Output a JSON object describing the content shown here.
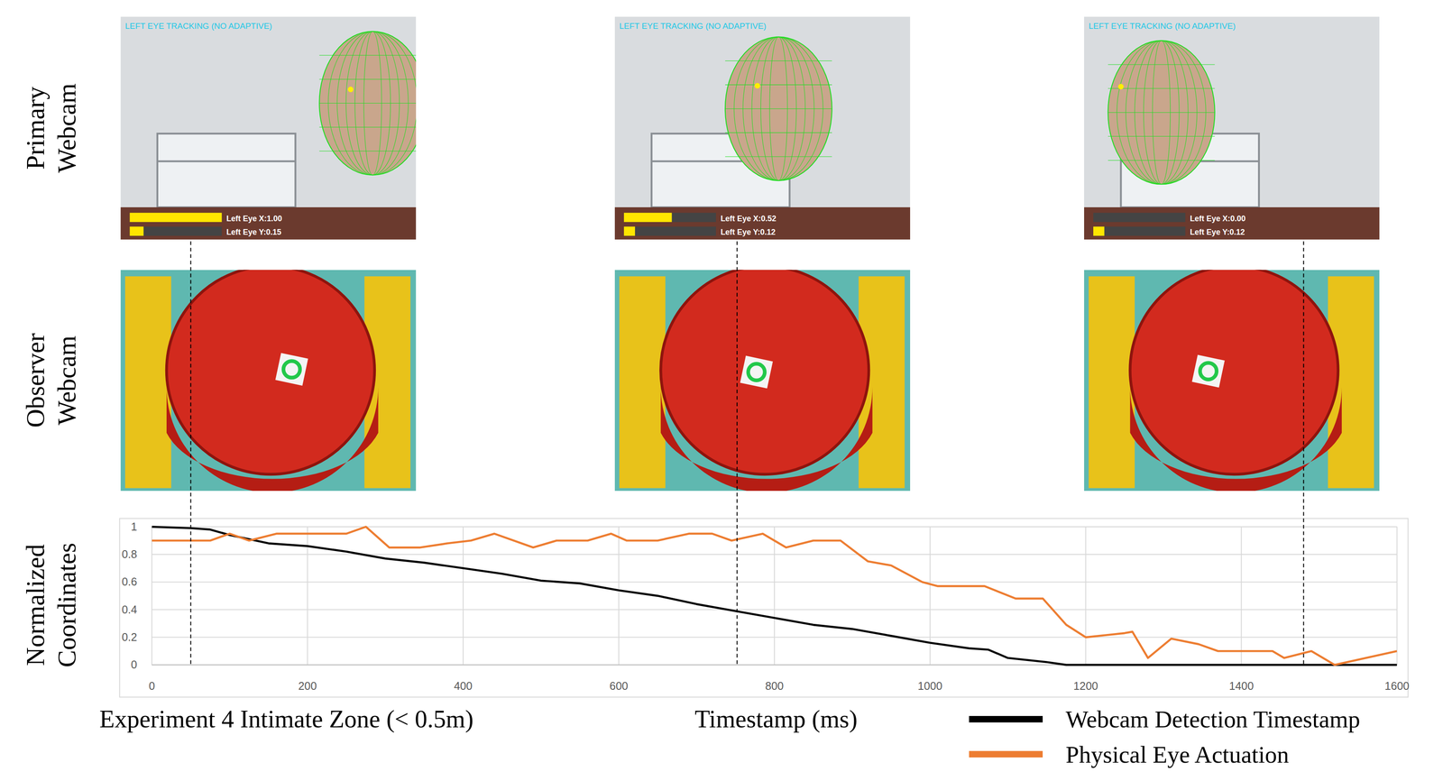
{
  "chart_data": {
    "type": "line",
    "title": "Experiment 4 Intimate Zone (< 0.5m)",
    "xlabel": "Timestamp (ms)",
    "ylabel": "Normalized Coordinates",
    "xlim": [
      0,
      1600
    ],
    "xticks": [
      0,
      200,
      400,
      600,
      800,
      1000,
      1200,
      1400,
      1600
    ],
    "ylim": [
      0,
      1
    ],
    "yticks": [
      0,
      0.2,
      0.4,
      0.6,
      0.8,
      1
    ],
    "grid": true,
    "legend": "bottom-right",
    "frame_times": [
      50,
      752,
      1480
    ],
    "series": [
      {
        "name": "Webcam Detection Timestamp",
        "color": "#000000",
        "x": [
          0,
          50,
          75,
          100,
          150,
          200,
          250,
          300,
          350,
          400,
          450,
          500,
          550,
          600,
          650,
          700,
          750,
          800,
          850,
          900,
          950,
          1000,
          1050,
          1075,
          1100,
          1150,
          1175,
          1600
        ],
        "values": [
          1.0,
          0.99,
          0.98,
          0.94,
          0.88,
          0.86,
          0.82,
          0.77,
          0.74,
          0.7,
          0.66,
          0.61,
          0.59,
          0.54,
          0.5,
          0.44,
          0.39,
          0.34,
          0.29,
          0.26,
          0.21,
          0.16,
          0.12,
          0.11,
          0.05,
          0.02,
          0.0,
          0.0
        ]
      },
      {
        "name": "Physical Eye Actuation",
        "color": "#ed7d31",
        "x": [
          0,
          50,
          75,
          100,
          125,
          160,
          200,
          250,
          275,
          305,
          345,
          380,
          410,
          440,
          490,
          520,
          560,
          590,
          610,
          650,
          690,
          720,
          745,
          785,
          815,
          850,
          885,
          920,
          950,
          990,
          1010,
          1070,
          1110,
          1145,
          1175,
          1200,
          1250,
          1260,
          1280,
          1310,
          1345,
          1370,
          1410,
          1440,
          1455,
          1490,
          1520,
          1560,
          1600
        ],
        "values": [
          0.9,
          0.9,
          0.9,
          0.95,
          0.9,
          0.95,
          0.95,
          0.95,
          1.0,
          0.85,
          0.85,
          0.88,
          0.9,
          0.95,
          0.85,
          0.9,
          0.9,
          0.95,
          0.9,
          0.9,
          0.95,
          0.95,
          0.9,
          0.95,
          0.85,
          0.9,
          0.9,
          0.75,
          0.72,
          0.6,
          0.57,
          0.57,
          0.48,
          0.48,
          0.29,
          0.2,
          0.23,
          0.24,
          0.05,
          0.19,
          0.15,
          0.1,
          0.1,
          0.1,
          0.05,
          0.1,
          0.0,
          0.05,
          0.1
        ]
      }
    ]
  },
  "row_labels": [
    "Primary Webcam",
    "Observer Webcam"
  ],
  "panels": [
    {
      "header": "LEFT EYE TRACKING (NO ADAPTIVE)",
      "eye_x": 1.0,
      "eye_x_label": "Left Eye X:1.00",
      "eye_y": 0.15,
      "eye_y_label": "Left Eye Y:0.15"
    },
    {
      "header": "LEFT EYE TRACKING (NO ADAPTIVE)",
      "eye_x": 0.52,
      "eye_x_label": "Left Eye X:0.52",
      "eye_y": 0.12,
      "eye_y_label": "Left Eye Y:0.12"
    },
    {
      "header": "LEFT EYE TRACKING (NO ADAPTIVE)",
      "eye_x": 0.0,
      "eye_x_label": "Left Eye X:0.00",
      "eye_y": 0.12,
      "eye_y_label": "Left Eye Y:0.12"
    }
  ]
}
